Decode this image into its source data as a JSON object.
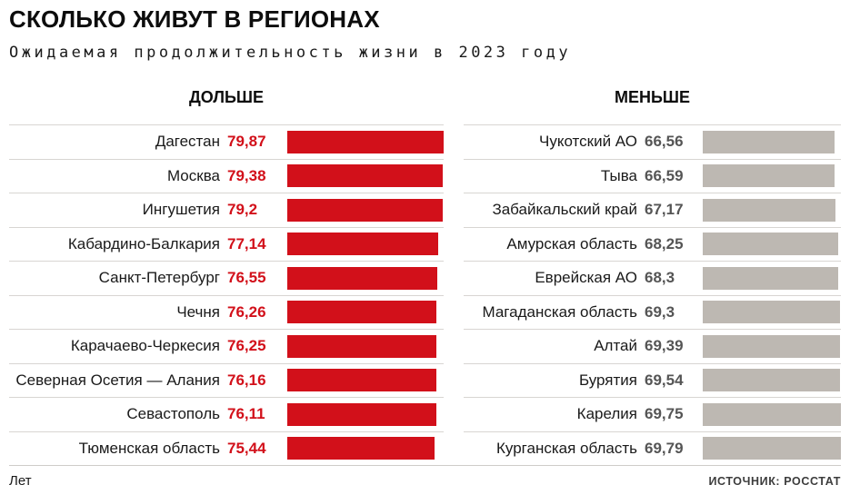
{
  "chart_data": {
    "type": "bar",
    "orientation": "horizontal",
    "title": "СКОЛЬКО ЖИВУТ В РЕГИОНАХ",
    "subtitle": "Ожидаемая продолжительность жизни в 2023 году",
    "unit": "Лет",
    "source": "ИСТОЧНИК: РОССТАТ",
    "legend_position": "none",
    "grid": false,
    "groups": [
      {
        "label": "ДОЛЬШЕ",
        "bar_color": "#d2101a",
        "value_color": "#d2101a",
        "categories": [
          "Дагестан",
          "Москва",
          "Ингушетия",
          "Кабардино-Балкария",
          "Санкт-Петербург",
          "Чечня",
          "Карачаево-Черкесия",
          "Северная Осетия — Алания",
          "Севастополь",
          "Тюменская область"
        ],
        "values": [
          79.87,
          79.38,
          79.2,
          77.14,
          76.55,
          76.26,
          76.25,
          76.16,
          76.11,
          75.44
        ],
        "value_labels": [
          "79,87",
          "79,38",
          "79,2",
          "77,14",
          "76,55",
          "76,26",
          "76,25",
          "76,16",
          "76,11",
          "75,44"
        ]
      },
      {
        "label": "МЕНЬШЕ",
        "bar_color": "#bdb8b2",
        "value_color": "#555555",
        "categories": [
          "Чукотский АО",
          "Тыва",
          "Забайкальский край",
          "Амурская область",
          "Еврейская АО",
          "Магаданская область",
          "Алтай",
          "Бурятия",
          "Карелия",
          "Курганская область"
        ],
        "values": [
          66.56,
          66.59,
          67.17,
          68.25,
          68.3,
          69.3,
          69.39,
          69.54,
          69.75,
          69.79
        ],
        "value_labels": [
          "66,56",
          "66,59",
          "67,17",
          "68,25",
          "68,3",
          "69,3",
          "69,39",
          "69,54",
          "69,75",
          "69,79"
        ]
      }
    ]
  }
}
